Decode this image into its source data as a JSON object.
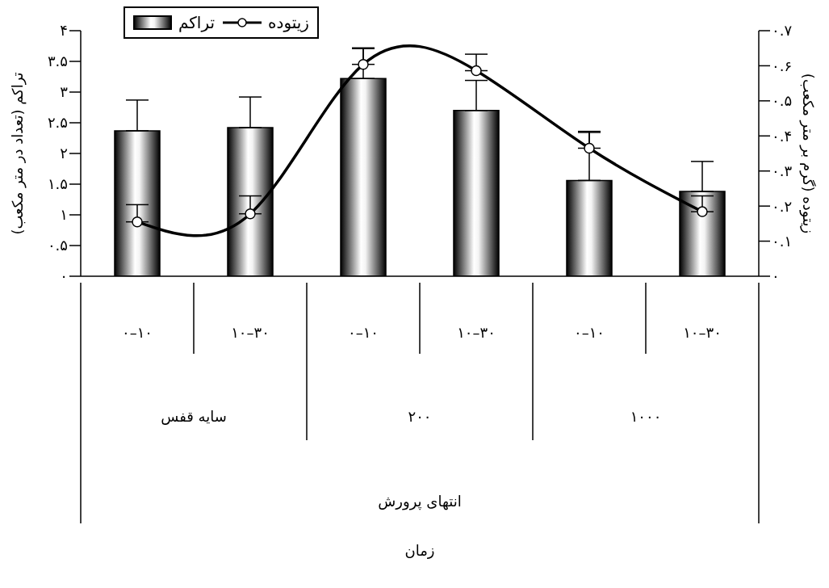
{
  "chart_data": {
    "type": "bar",
    "categories": [
      "۰–۱۰",
      "۱۰–۳۰",
      "۰–۱۰",
      "۱۰–۳۰",
      "۰–۱۰",
      "۱۰–۳۰"
    ],
    "series": [
      {
        "name": "تراکم",
        "color": "#000000",
        "values": [
          2.37,
          2.42,
          3.22,
          2.7,
          1.56,
          1.38
        ],
        "errors": [
          [
            2.37,
            2.87
          ],
          [
            2.42,
            2.92
          ],
          [
            3.22,
            3.72
          ],
          [
            2.7,
            3.19
          ],
          [
            1.56,
            2.36
          ],
          [
            1.38,
            1.87
          ]
        ]
      },
      {
        "name": "زیتوده",
        "type": "line",
        "axis": "y2",
        "color": "#000000",
        "values": [
          0.155,
          0.178,
          0.604,
          0.586,
          0.365,
          0.184
        ],
        "errors": [
          [
            0.155,
            0.204
          ],
          [
            0.178,
            0.229
          ],
          [
            0.604,
            0.649
          ],
          [
            0.586,
            0.633
          ],
          [
            0.365,
            0.41
          ],
          [
            0.184,
            0.229
          ]
        ]
      }
    ],
    "ylabel": "تراکم (تعداد در متر مکعب)",
    "y2label": "زیتوده (گرم بر متر مکعب)",
    "annotations": [
      "سایه قفس",
      "۲۰۰",
      "۱۰۰۰",
      "انتهای پرورش",
      "زمان"
    ],
    "ylim": [
      0,
      4
    ],
    "yticks": [
      {
        "value": 0,
        "label": "۰"
      },
      {
        "value": 0.5,
        "label": "۰.۵"
      },
      {
        "value": 1,
        "label": "۱"
      },
      {
        "value": 1.5,
        "label": "۱.۵"
      },
      {
        "value": 2,
        "label": "۲"
      },
      {
        "value": 2.5,
        "label": "۲.۵"
      },
      {
        "value": 3,
        "label": "۳"
      },
      {
        "value": 3.5,
        "label": "۳.۵"
      },
      {
        "value": 4,
        "label": "۴"
      }
    ],
    "y2lim": [
      0,
      0.7
    ],
    "y2ticks": [
      {
        "value": 0,
        "label": "۰"
      },
      {
        "value": 0.1,
        "label": "۰.۱"
      },
      {
        "value": 0.2,
        "label": "۰.۲"
      },
      {
        "value": 0.3,
        "label": "۰.۳"
      },
      {
        "value": 0.4,
        "label": "۰.۴"
      },
      {
        "value": 0.5,
        "label": "۰.۵"
      },
      {
        "value": 0.6,
        "label": "۰.۶"
      },
      {
        "value": 0.7,
        "label": "۰.۷"
      }
    ],
    "marker": "circle",
    "legend": "top left"
  }
}
